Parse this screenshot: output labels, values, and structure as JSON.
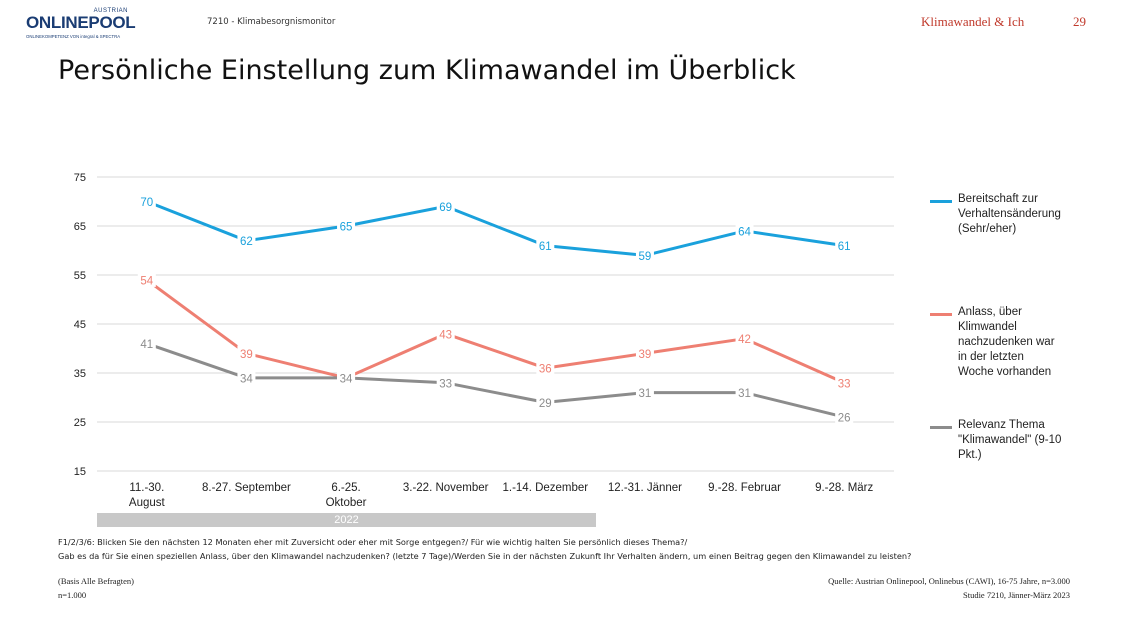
{
  "header": {
    "logo_austrian": "AUSTRIAN",
    "logo_main": "ONLINEPOOL",
    "logo_sub": "ONLINEKOMPETENZ VON integral & SPECTRA",
    "study": "7210 - Klimabesorgnismonitor",
    "section": "Klimawandel & Ich",
    "page": "29"
  },
  "title": "Persönliche Einstellung zum Klimawandel im Überblick",
  "colors": {
    "blue": "#1aa1dc",
    "red": "#ee7f72",
    "gray": "#8c8c8c",
    "grid": "#d9d9d9"
  },
  "chart_data": {
    "type": "line",
    "categories": [
      "11.-30. August",
      "8.-27. September",
      "6.-25. Oktober",
      "3.-22. November",
      "1.-14. Dezember",
      "12.-31. Jänner",
      "9.-28. Februar",
      "9.-28. März"
    ],
    "category_lines": [
      [
        "11.-30.",
        "August"
      ],
      [
        "8.-27. September"
      ],
      [
        "6.-25.",
        "Oktober"
      ],
      [
        "3.-22. November"
      ],
      [
        "1.-14. Dezember"
      ],
      [
        "12.-31. Jänner"
      ],
      [
        "9.-28. Februar"
      ],
      [
        "9.-28. März"
      ]
    ],
    "yticks": [
      15,
      25,
      35,
      45,
      55,
      65,
      75
    ],
    "ylim": [
      15,
      75
    ],
    "series": [
      {
        "name": "Bereitschaft zur Verhaltensänderung (Sehr/eher)",
        "legend_lines": [
          "Bereitschaft zur",
          "Verhaltensänderung",
          "(Sehr/eher)"
        ],
        "color": "#1aa1dc",
        "values": [
          70,
          62,
          65,
          69,
          61,
          59,
          64,
          61
        ]
      },
      {
        "name": "Anlass, über Klimwandel nachzudenken war in der letzten Woche vorhanden",
        "legend_lines": [
          "Anlass, über",
          "Klimwandel",
          "nachzudenken war",
          "in der letzten",
          "Woche vorhanden"
        ],
        "color": "#ee7f72",
        "values": [
          54,
          39,
          34,
          43,
          36,
          39,
          42,
          33
        ]
      },
      {
        "name": "Relevanz Thema \"Klimawandel\" (9-10 Pkt.)",
        "legend_lines": [
          "Relevanz Thema",
          "\"Klimawandel\" (9-10",
          "Pkt.)"
        ],
        "color": "#8c8c8c",
        "values": [
          41,
          34,
          34,
          33,
          29,
          31,
          31,
          26
        ]
      }
    ],
    "year_label": "2022"
  },
  "footer": {
    "question_line1": "F1/2/3/6: Blicken Sie den nächsten 12 Monaten eher mit Zuversicht oder eher mit Sorge entgegen?/ Für wie wichtig halten Sie persönlich dieses Thema?/",
    "question_line2": "Gab es da für Sie einen speziellen Anlass, über den Klimawandel nachzudenken? (letzte 7 Tage)/Werden Sie in der nächsten Zukunft Ihr Verhalten ändern, um einen Beitrag gegen den Klimawandel zu leisten?",
    "basis": "(Basis Alle Befragten)",
    "n": "n=1.000",
    "source": "Quelle: Austrian Onlinepool, Onlinebus (CAWI), 16-75 Jahre, n=3.000",
    "study_info": "Studie 7210, Jänner-März 2023"
  }
}
